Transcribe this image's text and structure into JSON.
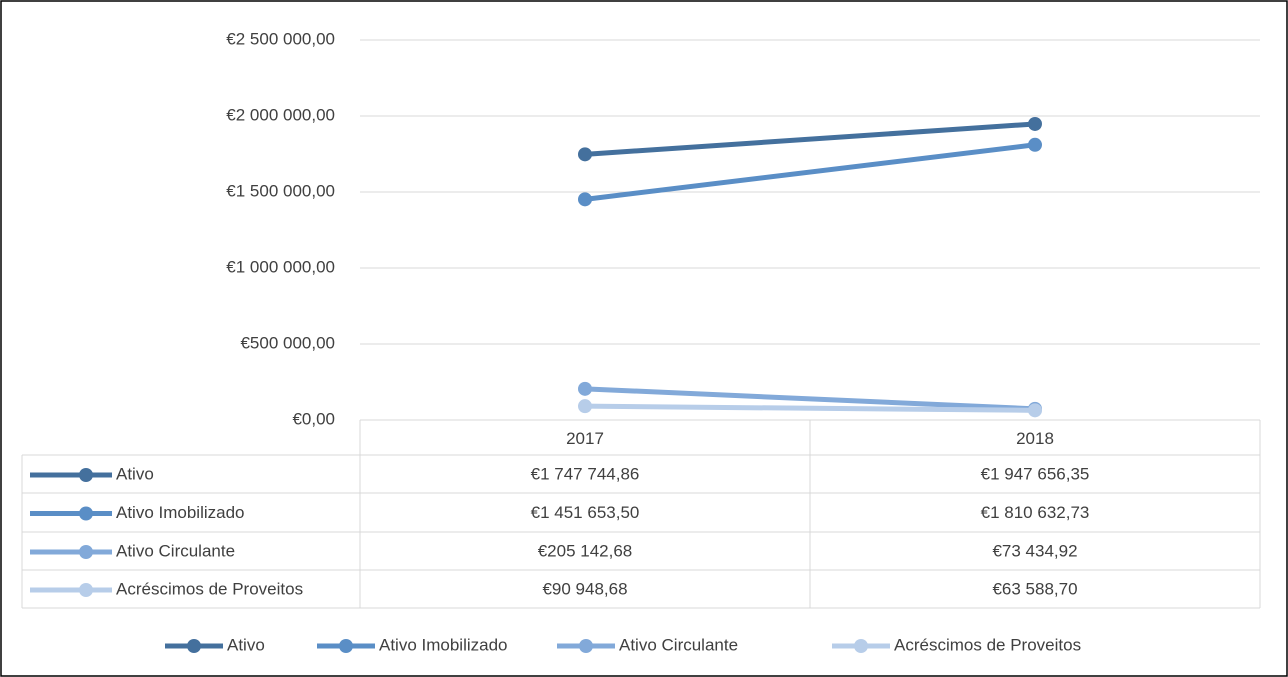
{
  "chart_data": {
    "type": "line",
    "categories": [
      "2017",
      "2018"
    ],
    "series": [
      {
        "name": "Ativo",
        "color": "#44709d",
        "values": [
          1747744.86,
          1947656.35
        ],
        "value_labels": [
          "€1 747 744,86",
          "€1 947 656,35"
        ]
      },
      {
        "name": "Ativo Imobilizado",
        "color": "#5a8ec6",
        "values": [
          1451653.5,
          1810632.73
        ],
        "value_labels": [
          "€1 451 653,50",
          "€1 810 632,73"
        ]
      },
      {
        "name": "Ativo Circulante",
        "color": "#82a9d9",
        "values": [
          205142.68,
          73434.92
        ],
        "value_labels": [
          "€205 142,68",
          "€73 434,92"
        ]
      },
      {
        "name": "Acréscimos de Proveitos",
        "color": "#b7cde9",
        "values": [
          90948.68,
          63588.7
        ],
        "value_labels": [
          "€90 948,68",
          "€63 588,70"
        ]
      }
    ],
    "ylim": [
      0,
      2500000
    ],
    "yticks": [
      {
        "value": 0,
        "label": "€0,00"
      },
      {
        "value": 500000,
        "label": "€500 000,00"
      },
      {
        "value": 1000000,
        "label": "€1 000 000,00"
      },
      {
        "value": 1500000,
        "label": "€1 500 000,00"
      },
      {
        "value": 2000000,
        "label": "€2 000 000,00"
      },
      {
        "value": 2500000,
        "label": "€2 500 000,00"
      }
    ],
    "grid": true,
    "data_table": true,
    "legend": "bottom"
  }
}
